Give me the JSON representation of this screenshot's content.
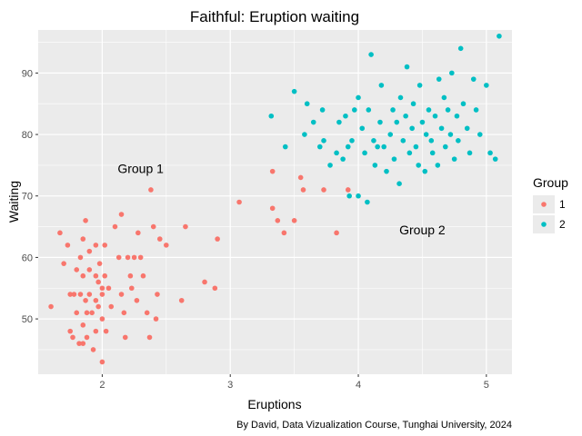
{
  "chart_data": {
    "type": "scatter",
    "title": "Faithful: Eruption waiting",
    "xlabel": "Eruptions",
    "ylabel": "Waiting",
    "caption": "By David, Data Vizualization Course, Tunghai University, 2024",
    "xlim": [
      1.5,
      5.2
    ],
    "ylim": [
      41,
      97
    ],
    "x_ticks": [
      2,
      3,
      4,
      5
    ],
    "y_ticks": [
      50,
      60,
      70,
      80,
      90
    ],
    "grid": true,
    "legend": {
      "title": "Group",
      "position": "right"
    },
    "annotations": [
      {
        "text": "Group 1",
        "x": 2.3,
        "y": 74.5
      },
      {
        "text": "Group 2",
        "x": 4.5,
        "y": 64.5
      }
    ],
    "series": [
      {
        "name": "1",
        "color": "#F8766D",
        "points": [
          [
            1.6,
            52
          ],
          [
            1.67,
            64
          ],
          [
            1.7,
            59
          ],
          [
            1.73,
            62
          ],
          [
            1.75,
            54
          ],
          [
            1.75,
            48
          ],
          [
            1.77,
            47
          ],
          [
            1.78,
            54
          ],
          [
            1.8,
            58
          ],
          [
            1.8,
            51
          ],
          [
            1.82,
            46
          ],
          [
            1.83,
            60
          ],
          [
            1.83,
            54
          ],
          [
            1.85,
            63
          ],
          [
            1.85,
            57
          ],
          [
            1.85,
            49
          ],
          [
            1.85,
            46
          ],
          [
            1.87,
            66
          ],
          [
            1.87,
            53
          ],
          [
            1.88,
            51
          ],
          [
            1.88,
            47
          ],
          [
            1.9,
            61
          ],
          [
            1.9,
            58
          ],
          [
            1.9,
            54
          ],
          [
            1.92,
            51
          ],
          [
            1.93,
            45
          ],
          [
            1.95,
            62
          ],
          [
            1.95,
            57
          ],
          [
            1.95,
            53
          ],
          [
            1.95,
            48
          ],
          [
            1.97,
            56
          ],
          [
            1.97,
            52
          ],
          [
            1.98,
            59
          ],
          [
            2.0,
            55
          ],
          [
            2.0,
            54
          ],
          [
            2.0,
            50
          ],
          [
            2.0,
            43
          ],
          [
            2.02,
            62
          ],
          [
            2.02,
            57
          ],
          [
            2.03,
            48
          ],
          [
            2.05,
            55
          ],
          [
            2.07,
            52
          ],
          [
            2.1,
            65
          ],
          [
            2.13,
            60
          ],
          [
            2.15,
            67
          ],
          [
            2.15,
            54
          ],
          [
            2.17,
            51
          ],
          [
            2.18,
            47
          ],
          [
            2.2,
            60
          ],
          [
            2.22,
            57
          ],
          [
            2.23,
            55
          ],
          [
            2.25,
            60
          ],
          [
            2.27,
            53
          ],
          [
            2.28,
            64
          ],
          [
            2.3,
            60
          ],
          [
            2.32,
            57
          ],
          [
            2.35,
            51
          ],
          [
            2.37,
            47
          ],
          [
            2.38,
            71
          ],
          [
            2.4,
            65
          ],
          [
            2.42,
            50
          ],
          [
            2.43,
            54
          ],
          [
            2.45,
            63
          ],
          [
            2.5,
            62
          ],
          [
            2.62,
            53
          ],
          [
            2.65,
            65
          ],
          [
            2.8,
            56
          ],
          [
            2.88,
            55
          ],
          [
            2.9,
            63
          ],
          [
            3.07,
            69
          ],
          [
            3.33,
            74
          ],
          [
            3.33,
            68
          ],
          [
            3.37,
            66
          ],
          [
            3.42,
            64
          ],
          [
            3.5,
            66
          ],
          [
            3.55,
            73
          ],
          [
            3.57,
            71
          ],
          [
            3.73,
            71
          ],
          [
            3.83,
            64
          ],
          [
            3.92,
            71
          ]
        ]
      },
      {
        "name": "2",
        "color": "#00BFC4",
        "points": [
          [
            3.32,
            83
          ],
          [
            3.43,
            78
          ],
          [
            3.5,
            87
          ],
          [
            3.58,
            80
          ],
          [
            3.6,
            85
          ],
          [
            3.65,
            82
          ],
          [
            3.7,
            78
          ],
          [
            3.72,
            84
          ],
          [
            3.73,
            79
          ],
          [
            3.78,
            75
          ],
          [
            3.83,
            77
          ],
          [
            3.85,
            82
          ],
          [
            3.88,
            76
          ],
          [
            3.9,
            83
          ],
          [
            3.92,
            78
          ],
          [
            3.93,
            70
          ],
          [
            3.95,
            79
          ],
          [
            3.97,
            84
          ],
          [
            4.0,
            70
          ],
          [
            4.0,
            86
          ],
          [
            4.03,
            81
          ],
          [
            4.05,
            77
          ],
          [
            4.07,
            69
          ],
          [
            4.08,
            84
          ],
          [
            4.1,
            93
          ],
          [
            4.12,
            79
          ],
          [
            4.13,
            75
          ],
          [
            4.15,
            78
          ],
          [
            4.17,
            82
          ],
          [
            4.18,
            88
          ],
          [
            4.2,
            78
          ],
          [
            4.22,
            74
          ],
          [
            4.25,
            80
          ],
          [
            4.27,
            84
          ],
          [
            4.28,
            76
          ],
          [
            4.3,
            82
          ],
          [
            4.32,
            72
          ],
          [
            4.33,
            86
          ],
          [
            4.35,
            79
          ],
          [
            4.37,
            83
          ],
          [
            4.38,
            91
          ],
          [
            4.4,
            77
          ],
          [
            4.42,
            81
          ],
          [
            4.43,
            85
          ],
          [
            4.45,
            78
          ],
          [
            4.47,
            75
          ],
          [
            4.48,
            88
          ],
          [
            4.5,
            82
          ],
          [
            4.52,
            74
          ],
          [
            4.53,
            80
          ],
          [
            4.55,
            84
          ],
          [
            4.57,
            79
          ],
          [
            4.58,
            77
          ],
          [
            4.6,
            83
          ],
          [
            4.62,
            75
          ],
          [
            4.63,
            89
          ],
          [
            4.65,
            81
          ],
          [
            4.67,
            86
          ],
          [
            4.68,
            78
          ],
          [
            4.7,
            84
          ],
          [
            4.72,
            80
          ],
          [
            4.73,
            90
          ],
          [
            4.75,
            76
          ],
          [
            4.77,
            83
          ],
          [
            4.78,
            79
          ],
          [
            4.8,
            94
          ],
          [
            4.82,
            85
          ],
          [
            4.85,
            81
          ],
          [
            4.87,
            77
          ],
          [
            4.9,
            89
          ],
          [
            4.92,
            84
          ],
          [
            4.95,
            80
          ],
          [
            5.0,
            88
          ],
          [
            5.03,
            77
          ],
          [
            5.07,
            76
          ],
          [
            5.1,
            96
          ]
        ]
      }
    ]
  }
}
